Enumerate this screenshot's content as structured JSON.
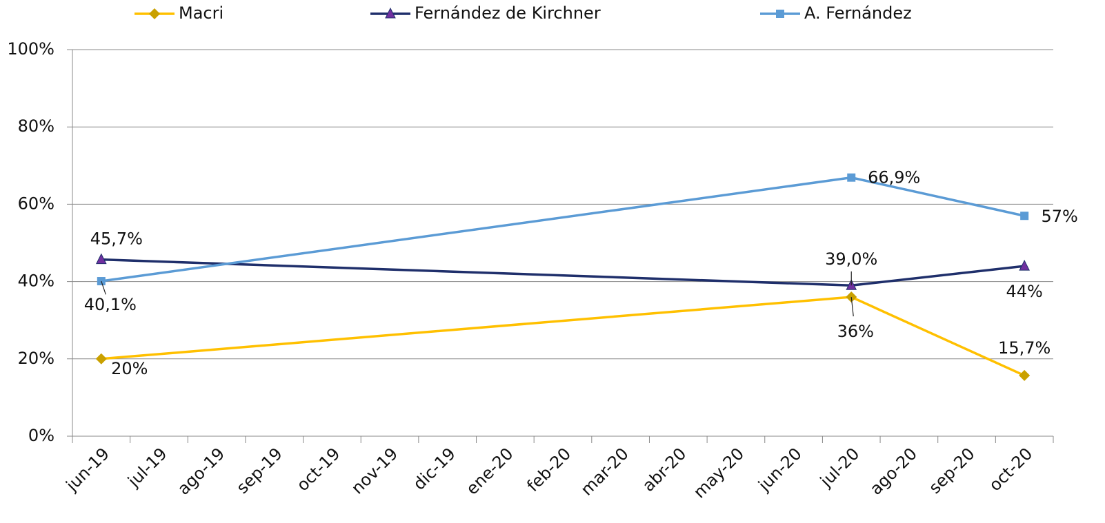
{
  "chart_data": {
    "type": "line",
    "categories": [
      "jun-19",
      "jul-19",
      "ago-19",
      "sep-19",
      "oct-19",
      "nov-19",
      "dic-19",
      "ene-20",
      "feb-20",
      "mar-20",
      "abr-20",
      "may-20",
      "jun-20",
      "jul-20",
      "ago-20",
      "sep-20",
      "oct-20"
    ],
    "series": [
      {
        "name": "Macri",
        "color": "#FFC000",
        "marker_color": "#C9A000",
        "marker": "diamond",
        "x": [
          "jun-19",
          "jul-20",
          "oct-20"
        ],
        "values": [
          20,
          36,
          15.7
        ],
        "value_labels": [
          "20%",
          "36%",
          "15,7%"
        ]
      },
      {
        "name": "Fernández de Kirchner",
        "color": "#1F2F6B",
        "marker_color": "#7030A0",
        "marker": "triangle",
        "x": [
          "jun-19",
          "jul-20",
          "oct-20"
        ],
        "values": [
          45.7,
          39.0,
          44
        ],
        "value_labels": [
          "45,7%",
          "39,0%",
          "44%"
        ]
      },
      {
        "name": "A. Fernández",
        "color": "#5B9BD5",
        "marker_color": "#5B9BD5",
        "marker": "square",
        "x": [
          "jun-19",
          "jul-20",
          "oct-20"
        ],
        "values": [
          40.1,
          66.9,
          57
        ],
        "value_labels": [
          "40,1%",
          "66,9%",
          "57%"
        ]
      }
    ],
    "ylim": [
      0,
      100
    ],
    "yticks": [
      {
        "value": 0,
        "label": "0%"
      },
      {
        "value": 20,
        "label": "20%"
      },
      {
        "value": 40,
        "label": "40%"
      },
      {
        "value": 60,
        "label": "60%"
      },
      {
        "value": 80,
        "label": "80%"
      },
      {
        "value": 100,
        "label": "100%"
      }
    ],
    "grid": true,
    "legend": "top"
  }
}
